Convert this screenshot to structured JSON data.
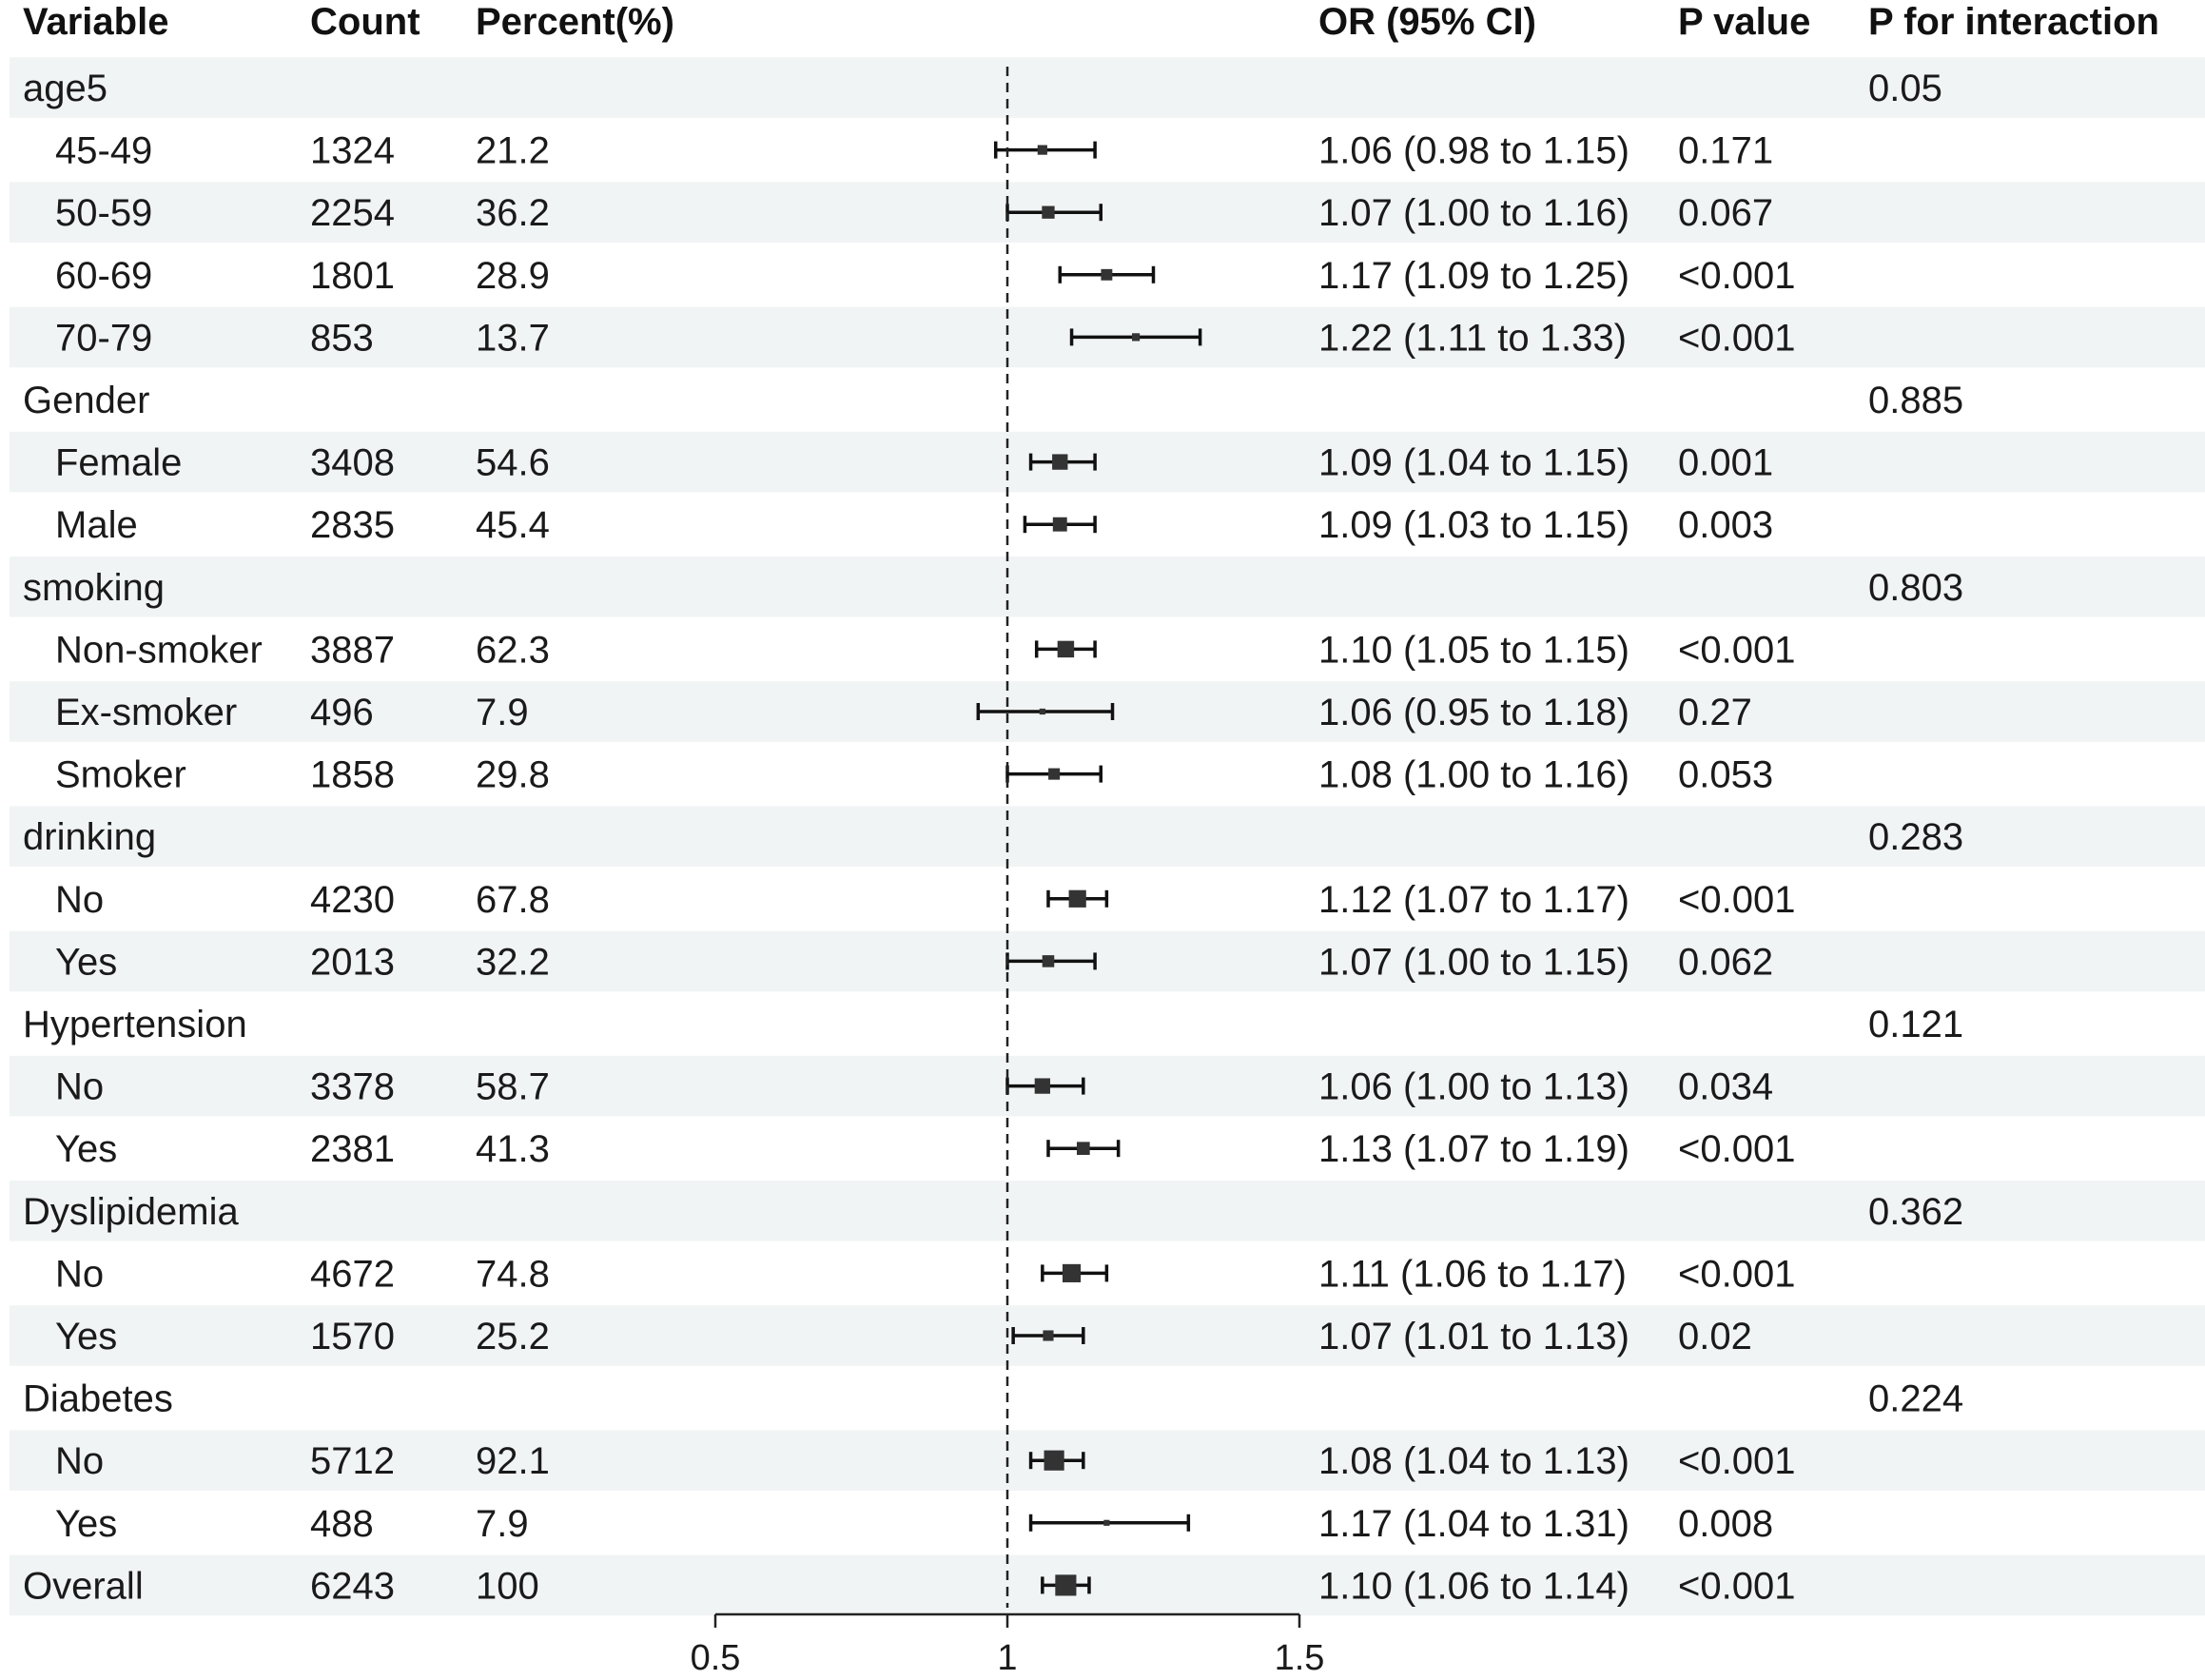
{
  "headers": {
    "variable": "Variable",
    "count": "Count",
    "percent": "Percent(%)",
    "or": "OR (95% CI)",
    "p": "P value",
    "p_interaction": "P for interaction"
  },
  "chart_data": {
    "type": "forest",
    "reference_line": 1,
    "xlim": [
      0.5,
      1.5
    ],
    "x_ticks": [
      "0.5",
      "1",
      "1.5"
    ],
    "rows": [
      {
        "label": "age5",
        "group": true,
        "p_interaction": "0.05"
      },
      {
        "label": "45-49",
        "count": "1324",
        "percent": "21.2",
        "or": 1.06,
        "lo": 0.98,
        "hi": 1.15,
        "or_text": "1.06 (0.98 to 1.15)",
        "p": "0.171"
      },
      {
        "label": "50-59",
        "count": "2254",
        "percent": "36.2",
        "or": 1.07,
        "lo": 1.0,
        "hi": 1.16,
        "or_text": "1.07 (1.00 to 1.16)",
        "p": "0.067"
      },
      {
        "label": "60-69",
        "count": "1801",
        "percent": "28.9",
        "or": 1.17,
        "lo": 1.09,
        "hi": 1.25,
        "or_text": "1.17 (1.09 to 1.25)",
        "p": "<0.001"
      },
      {
        "label": "70-79",
        "count": "853",
        "percent": "13.7",
        "or": 1.22,
        "lo": 1.11,
        "hi": 1.33,
        "or_text": "1.22 (1.11 to 1.33)",
        "p": "<0.001"
      },
      {
        "label": "Gender",
        "group": true,
        "p_interaction": "0.885"
      },
      {
        "label": "Female",
        "count": "3408",
        "percent": "54.6",
        "or": 1.09,
        "lo": 1.04,
        "hi": 1.15,
        "or_text": "1.09 (1.04 to 1.15)",
        "p": "0.001"
      },
      {
        "label": "Male",
        "count": "2835",
        "percent": "45.4",
        "or": 1.09,
        "lo": 1.03,
        "hi": 1.15,
        "or_text": "1.09 (1.03 to 1.15)",
        "p": "0.003"
      },
      {
        "label": "smoking",
        "group": true,
        "p_interaction": "0.803"
      },
      {
        "label": "Non-smoker",
        "count": "3887",
        "percent": "62.3",
        "or": 1.1,
        "lo": 1.05,
        "hi": 1.15,
        "or_text": "1.10 (1.05 to 1.15)",
        "p": "<0.001"
      },
      {
        "label": "Ex-smoker",
        "count": "496",
        "percent": "7.9",
        "or": 1.06,
        "lo": 0.95,
        "hi": 1.18,
        "or_text": "1.06 (0.95 to 1.18)",
        "p": "0.27"
      },
      {
        "label": "Smoker",
        "count": "1858",
        "percent": "29.8",
        "or": 1.08,
        "lo": 1.0,
        "hi": 1.16,
        "or_text": "1.08 (1.00 to 1.16)",
        "p": "0.053"
      },
      {
        "label": "drinking",
        "group": true,
        "p_interaction": "0.283"
      },
      {
        "label": "No",
        "count": "4230",
        "percent": "67.8",
        "or": 1.12,
        "lo": 1.07,
        "hi": 1.17,
        "or_text": "1.12 (1.07 to 1.17)",
        "p": "<0.001"
      },
      {
        "label": "Yes",
        "count": "2013",
        "percent": "32.2",
        "or": 1.07,
        "lo": 1.0,
        "hi": 1.15,
        "or_text": "1.07 (1.00 to 1.15)",
        "p": "0.062"
      },
      {
        "label": "Hypertension",
        "group": true,
        "p_interaction": "0.121"
      },
      {
        "label": "No",
        "count": "3378",
        "percent": "58.7",
        "or": 1.06,
        "lo": 1.0,
        "hi": 1.13,
        "or_text": "1.06 (1.00 to 1.13)",
        "p": "0.034"
      },
      {
        "label": "Yes",
        "count": "2381",
        "percent": "41.3",
        "or": 1.13,
        "lo": 1.07,
        "hi": 1.19,
        "or_text": "1.13 (1.07 to 1.19)",
        "p": "<0.001"
      },
      {
        "label": "Dyslipidemia",
        "group": true,
        "p_interaction": "0.362"
      },
      {
        "label": "No",
        "count": "4672",
        "percent": "74.8",
        "or": 1.11,
        "lo": 1.06,
        "hi": 1.17,
        "or_text": "1.11 (1.06 to 1.17)",
        "p": "<0.001"
      },
      {
        "label": "Yes",
        "count": "1570",
        "percent": "25.2",
        "or": 1.07,
        "lo": 1.01,
        "hi": 1.13,
        "or_text": "1.07 (1.01 to 1.13)",
        "p": "0.02"
      },
      {
        "label": "Diabetes",
        "group": true,
        "p_interaction": "0.224"
      },
      {
        "label": "No",
        "count": "5712",
        "percent": "92.1",
        "or": 1.08,
        "lo": 1.04,
        "hi": 1.13,
        "or_text": "1.08 (1.04 to 1.13)",
        "p": "<0.001"
      },
      {
        "label": "Yes",
        "count": "488",
        "percent": "7.9",
        "or": 1.17,
        "lo": 1.04,
        "hi": 1.31,
        "or_text": "1.17 (1.04 to 1.31)",
        "p": "0.008"
      },
      {
        "label": "Overall",
        "group": true,
        "count": "6243",
        "percent": "100",
        "or": 1.1,
        "lo": 1.06,
        "hi": 1.14,
        "or_text": "1.10 (1.06 to 1.14)",
        "p": "<0.001"
      }
    ]
  }
}
